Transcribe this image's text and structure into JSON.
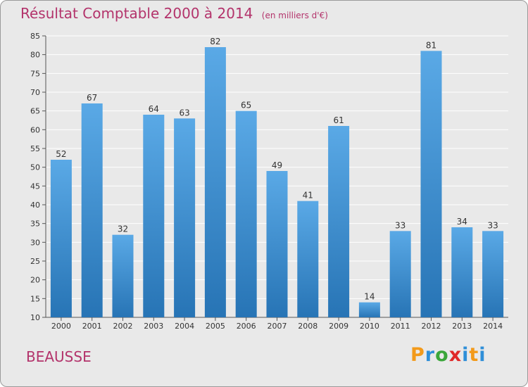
{
  "chart_data": {
    "type": "bar",
    "title": "Résultat Comptable 2000 à 2014",
    "subtitle": "(en milliers d'€)",
    "categories": [
      "2000",
      "2001",
      "2002",
      "2003",
      "2004",
      "2005",
      "2006",
      "2007",
      "2008",
      "2009",
      "2010",
      "2011",
      "2012",
      "2013",
      "2014"
    ],
    "values": [
      52,
      67,
      32,
      64,
      63,
      82,
      65,
      49,
      41,
      61,
      14,
      33,
      81,
      34,
      33
    ],
    "ylim": [
      10,
      85
    ],
    "yticks": [
      10,
      15,
      20,
      25,
      30,
      35,
      40,
      45,
      50,
      55,
      60,
      65,
      70,
      75,
      80,
      85
    ],
    "xlabel": "",
    "ylabel": "",
    "grid": true
  },
  "location": "BEAUSSE",
  "brand": {
    "letters": [
      "P",
      "r",
      "o",
      "x",
      "i",
      "t",
      "i"
    ],
    "colors": [
      "#f39a1a",
      "#2f8fd8",
      "#3aa63a",
      "#e02828",
      "#2f8fd8",
      "#f39a1a",
      "#2f8fd8"
    ]
  },
  "colors": {
    "title": "#b3336b",
    "bar_top": "#5aa9e6",
    "bar_bottom": "#2774b5",
    "grid": "#ffffff"
  }
}
